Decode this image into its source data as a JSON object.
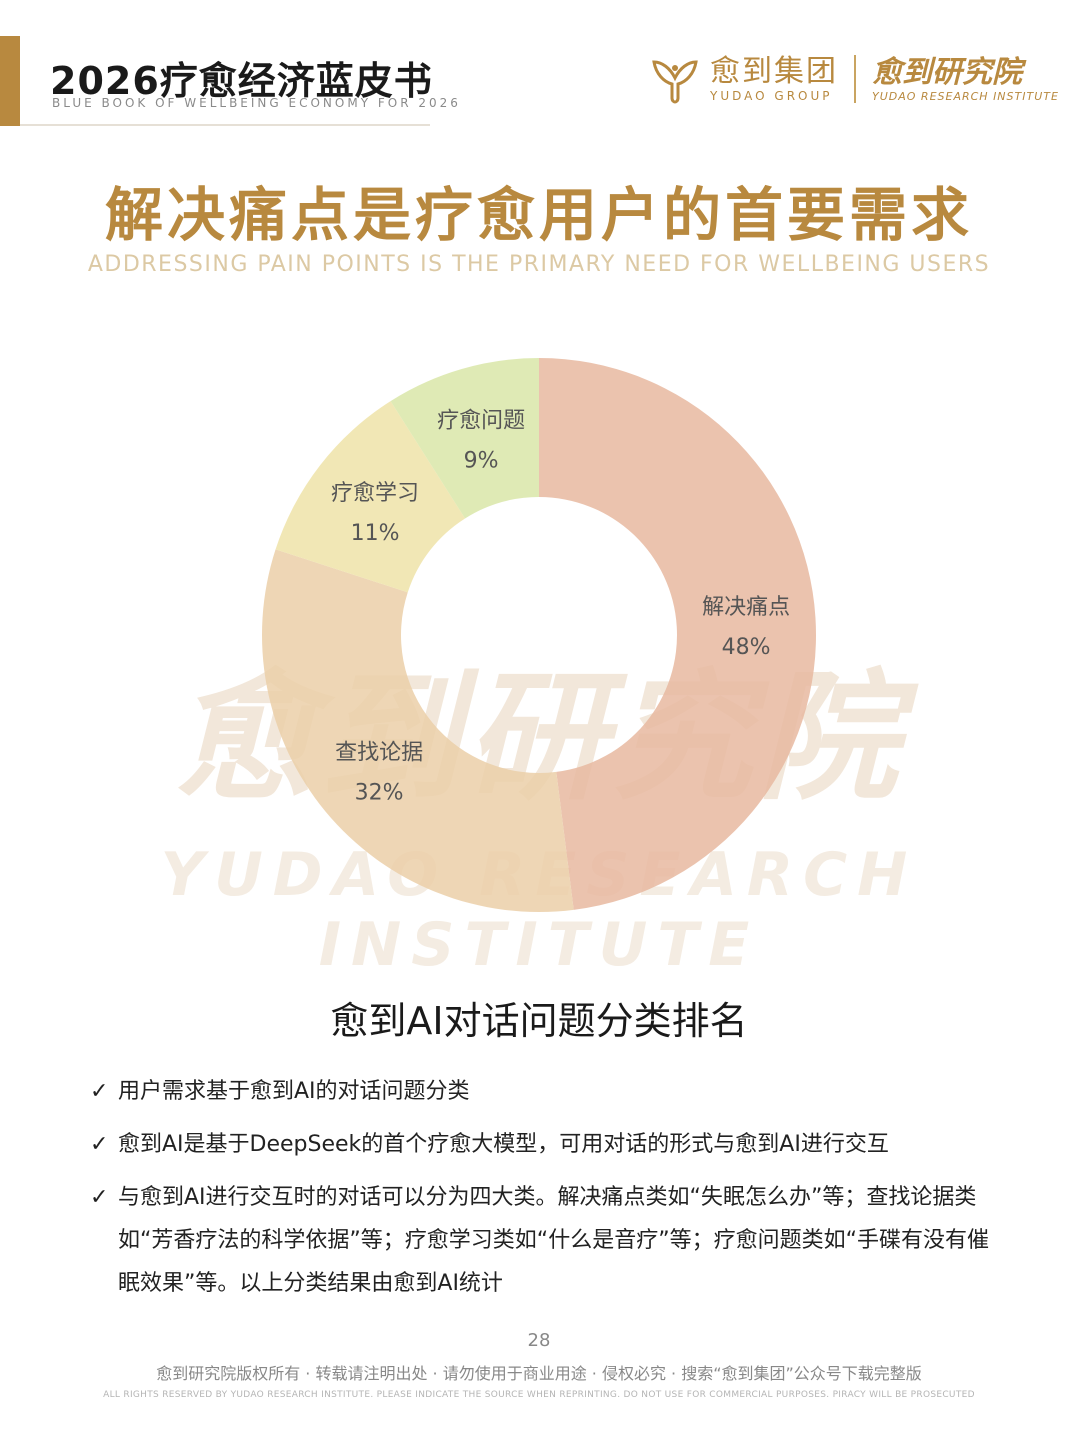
{
  "header": {
    "title": "2026疗愈经济蓝皮书",
    "subtitle": "BLUE BOOK OF WELLBEING ECONOMY FOR 2026",
    "logo_cn": "愈到集团",
    "logo_en": "YUDAO GROUP",
    "institute_cn": "愈到研究院",
    "institute_en": "YUDAO RESEARCH INSTITUTE",
    "accent_color": "#b8893f"
  },
  "page": {
    "title": "解决痛点是疗愈用户的首要需求",
    "subtitle": "ADDRESSING PAIN POINTS IS THE PRIMARY NEED FOR WELLBEING USERS"
  },
  "watermark": {
    "cn": "愈到研究院",
    "en": "YUDAO RESEARCH INSTITUTE"
  },
  "chart_data": {
    "type": "pie",
    "donut": true,
    "categories": [
      "解决痛点",
      "查找论据",
      "疗愈学习",
      "疗愈问题"
    ],
    "values": [
      48,
      32,
      11,
      9
    ],
    "value_labels": [
      "48%",
      "32%",
      "11%",
      "9%"
    ],
    "colors": [
      "#e8b8a0",
      "#ebcfa8",
      "#efe3a8",
      "#d9e6a8"
    ],
    "start_angle": "12 o'clock, clockwise"
  },
  "section": {
    "title": "愈到AI对话问题分类排名",
    "check_icon": "✓",
    "bullets": [
      "用户需求基于愈到AI的对话问题分类",
      "愈到AI是基于DeepSeek的首个疗愈大模型，可用对话的形式与愈到AI进行交互",
      "与愈到AI进行交互时的对话可以分为四大类。解决痛点类如“失眠怎么办”等；查找论据类如“芳香疗法的科学依据”等；疗愈学习类如“什么是音疗”等；疗愈问题类如“手碟有没有催眠效果”等。以上分类结果由愈到AI统计"
    ]
  },
  "footer": {
    "page_number": "28",
    "copyright_cn": "愈到研究院版权所有 · 转载请注明出处 · 请勿使用于商业用途 · 侵权必究 · 搜索“愈到集团”公众号下载完整版",
    "copyright_en": "ALL RIGHTS RESERVED BY YUDAO RESEARCH INSTITUTE. PLEASE INDICATE THE SOURCE WHEN REPRINTING. DO NOT USE FOR COMMERCIAL PURPOSES. PIRACY WILL BE PROSECUTED"
  }
}
